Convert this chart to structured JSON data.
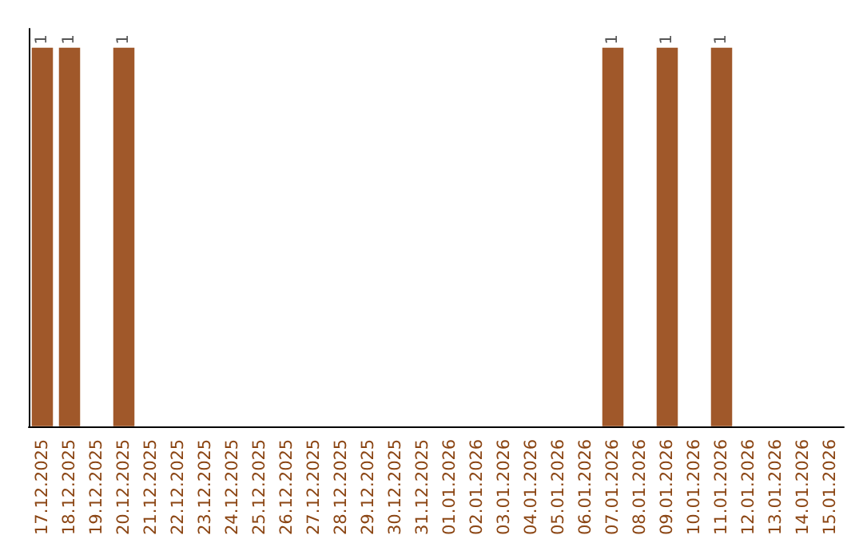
{
  "chart_data": {
    "type": "bar",
    "tick_labels": "x",
    "color": "#a0582a",
    "categories": [
      "17.12.2025",
      "18.12.2025",
      "19.12.2025",
      "20.12.2025",
      "21.12.2025",
      "22.12.2025",
      "23.12.2025",
      "24.12.2025",
      "25.12.2025",
      "26.12.2025",
      "27.12.2025",
      "28.12.2025",
      "29.12.2025",
      "30.12.2025",
      "31.12.2025",
      "01.01.2026",
      "02.01.2026",
      "03.01.2026",
      "04.01.2026",
      "05.01.2026",
      "06.01.2026",
      "07.01.2026",
      "08.01.2026",
      "09.01.2026",
      "10.01.2026",
      "11.01.2026",
      "12.01.2026",
      "13.01.2026",
      "14.01.2026",
      "15.01.2026"
    ],
    "values": [
      1,
      1,
      0,
      1,
      0,
      0,
      0,
      0,
      0,
      0,
      0,
      0,
      0,
      0,
      0,
      0,
      0,
      0,
      0,
      0,
      0,
      1,
      0,
      1,
      0,
      1,
      0,
      0,
      0,
      0
    ],
    "value_labels": [
      "1",
      "1",
      null,
      "1",
      null,
      null,
      null,
      null,
      null,
      null,
      null,
      null,
      null,
      null,
      null,
      null,
      null,
      null,
      null,
      null,
      null,
      "1",
      null,
      "1",
      null,
      "1",
      null,
      null,
      null,
      null
    ]
  }
}
